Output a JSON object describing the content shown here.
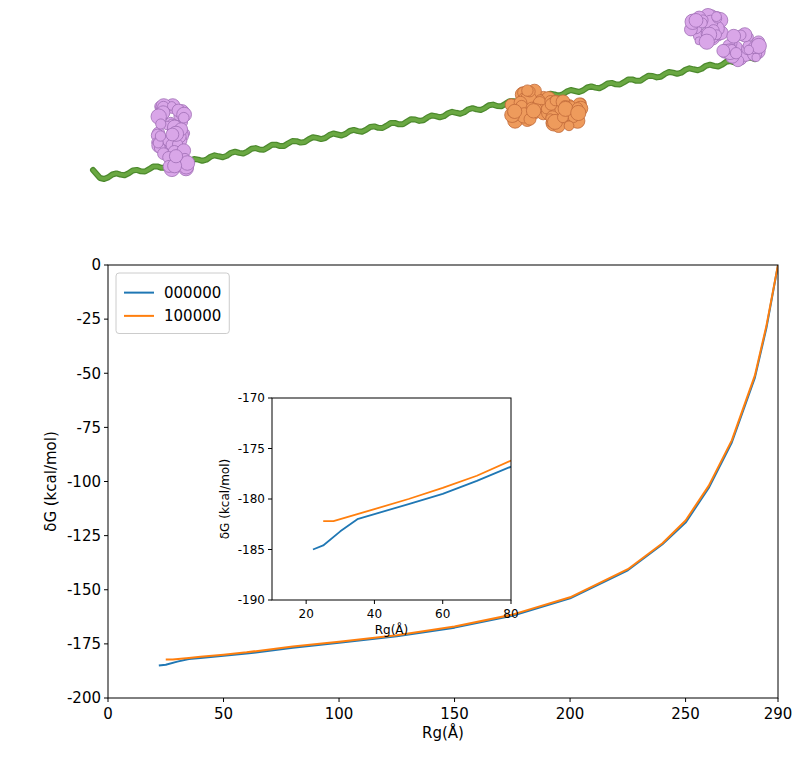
{
  "chart_data": [
    {
      "type": "line",
      "xlabel": "Rg(Å)",
      "ylabel": "δG (kcal/mol)",
      "xlim": [
        0,
        290
      ],
      "xticks": [
        0,
        50,
        100,
        150,
        200,
        250,
        290
      ],
      "ylim": [
        -200,
        0
      ],
      "yticks": [
        -200,
        -175,
        -150,
        -125,
        -100,
        -75,
        -50,
        -25,
        0
      ],
      "legend": "upper left",
      "series": [
        {
          "name": "000000",
          "color": "#1f77b4",
          "x": [
            22,
            25,
            30,
            35,
            40,
            50,
            60,
            80,
            100,
            125,
            150,
            175,
            200,
            225,
            240,
            250,
            260,
            270,
            280,
            285,
            290
          ],
          "values": [
            -185,
            -184.6,
            -183.2,
            -182,
            -181.5,
            -180.5,
            -179.5,
            -176.8,
            -174.5,
            -171.5,
            -167.5,
            -162,
            -154,
            -141,
            -129,
            -119,
            -103,
            -82,
            -52,
            -29,
            0
          ]
        },
        {
          "name": "100000",
          "color": "#ff7f0e",
          "x": [
            25,
            28,
            35,
            40,
            50,
            60,
            80,
            100,
            125,
            150,
            175,
            200,
            225,
            240,
            250,
            260,
            270,
            280,
            285,
            290
          ],
          "values": [
            -182.2,
            -182.2,
            -181.5,
            -181,
            -180,
            -178.9,
            -176.2,
            -174,
            -171,
            -167,
            -161.5,
            -153.5,
            -140.5,
            -128.5,
            -118,
            -102,
            -81,
            -51,
            -28,
            0
          ]
        }
      ]
    },
    {
      "type": "line",
      "xlabel": "Rg(Å)",
      "ylabel": "δG (kcal/mol)",
      "xlim": [
        10,
        80
      ],
      "xticks": [
        20,
        40,
        60,
        80
      ],
      "ylim": [
        -190,
        -170
      ],
      "yticks": [
        -190,
        -185,
        -180,
        -175,
        -170
      ],
      "series": [
        {
          "color": "#1f77b4",
          "x": [
            22,
            25,
            30,
            35,
            40,
            50,
            60,
            70,
            80
          ],
          "values": [
            -185,
            -184.6,
            -183.2,
            -182,
            -181.5,
            -180.5,
            -179.5,
            -178.2,
            -176.8
          ]
        },
        {
          "color": "#ff7f0e",
          "x": [
            25,
            28,
            35,
            40,
            50,
            60,
            70,
            80
          ],
          "values": [
            -182.2,
            -182.2,
            -181.5,
            -181,
            -180,
            -178.9,
            -177.7,
            -176.2
          ]
        }
      ]
    }
  ]
}
